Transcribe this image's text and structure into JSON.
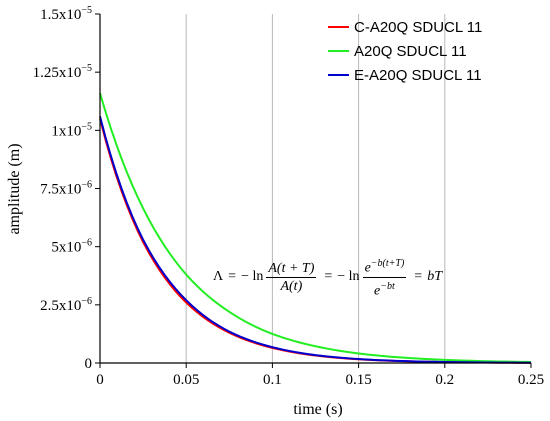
{
  "chart_data": {
    "type": "line",
    "xlabel": "time (s)",
    "ylabel": "amplitude (m)",
    "xlim": [
      0,
      0.25
    ],
    "ylim": [
      0,
      1.5e-05
    ],
    "x_ticks": [
      0,
      0.05,
      0.1,
      0.15,
      0.2,
      0.25
    ],
    "x_tick_labels": [
      "0",
      "0.05",
      "0.1",
      "0.15",
      "0.2",
      "0.25"
    ],
    "y_ticks": [
      0,
      2.5e-06,
      5e-06,
      7.5e-06,
      1e-05,
      1.25e-05,
      1.5e-05
    ],
    "y_tick_labels": [
      {
        "mant": "0",
        "exp": ""
      },
      {
        "mant": "2.5x10",
        "exp": "−6"
      },
      {
        "mant": "5x10",
        "exp": "−6"
      },
      {
        "mant": "7.5x10",
        "exp": "−6"
      },
      {
        "mant": "1x10",
        "exp": "−5"
      },
      {
        "mant": "1.25x10",
        "exp": "−5"
      },
      {
        "mant": "1.5x10",
        "exp": "−5"
      }
    ],
    "grid": {
      "vertical": true,
      "horizontal": false
    },
    "legend_position": "top-right",
    "x": [
      0,
      0.025,
      0.05,
      0.075,
      0.1,
      0.125,
      0.15,
      0.175,
      0.2,
      0.225,
      0.25
    ],
    "series": [
      {
        "name": "C-A20Q SDUCL 11",
        "color": "#ff0000",
        "values": [
          1.05e-05,
          5.2e-06,
          2.6e-06,
          1.3e-06,
          6.5e-07,
          3.2e-07,
          1.6e-07,
          8e-08,
          4e-08,
          2e-08,
          1e-08
        ]
      },
      {
        "name": "A20Q SDUCL 11",
        "color": "#22ee22",
        "values": [
          1.16e-05,
          6.65e-06,
          3.8e-06,
          2.2e-06,
          1.25e-06,
          7.2e-07,
          4.1e-07,
          2.35e-07,
          1.35e-07,
          7.7e-08,
          4.4e-08
        ]
      },
      {
        "name": "E-A20Q SDUCL 11",
        "color": "#0000cc",
        "values": [
          1.06e-05,
          5.3e-06,
          2.7e-06,
          1.35e-06,
          6.8e-07,
          3.4e-07,
          1.7e-07,
          8.6e-08,
          4.3e-08,
          2.2e-08,
          1.1e-08
        ]
      }
    ]
  },
  "formula": {
    "lambda": "Λ",
    "eq": "=",
    "minus_ln": "− ln",
    "num1": "A(t + T)",
    "den1": "A(t)",
    "num2_base": "e",
    "num2_exp": "−b(t+T)",
    "den2_base": "e",
    "den2_exp": "−bt",
    "rhs": "bT"
  }
}
